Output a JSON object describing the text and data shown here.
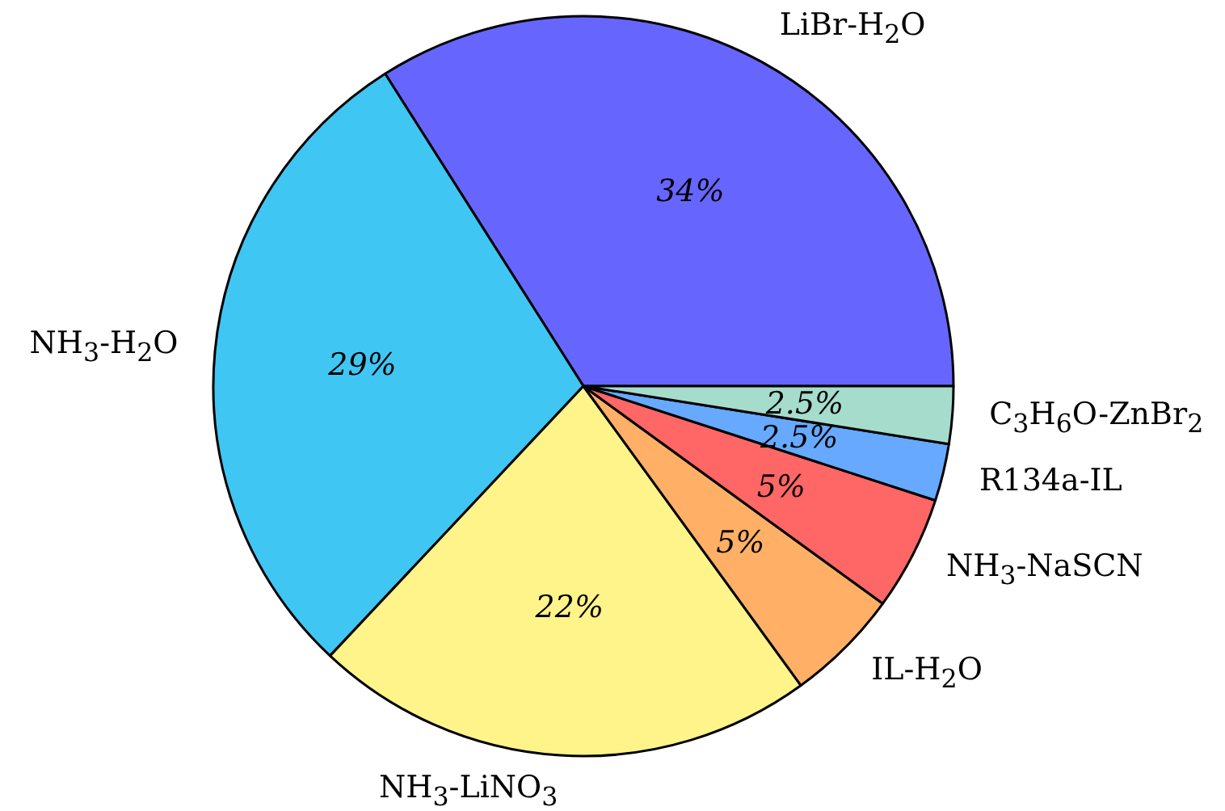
{
  "chart_data": {
    "type": "pie",
    "categories": [
      "LiBr-H$_{2}$O",
      "NH$_{3}$-H$_{2}$O",
      "NH$_{3}$-LiNO$_{3}$",
      "IL-H$_{2}$O",
      "NH$_{3}$-NaSCN",
      "R134a-IL",
      "C$_{3}$H$_{6}$O-ZnBr$_{2}$"
    ],
    "values": [
      34,
      29,
      22,
      5,
      5,
      2.5,
      2.5
    ],
    "colors": [
      "#6666ff",
      "#40c6f3",
      "#fff48a",
      "#ffb066",
      "#ff6666",
      "#66a9ff",
      "#a6dccb"
    ],
    "value_labels": [
      "34%",
      "29%",
      "22%",
      "5%",
      "5%",
      "2.5%",
      "2.5%"
    ],
    "legend": false
  }
}
